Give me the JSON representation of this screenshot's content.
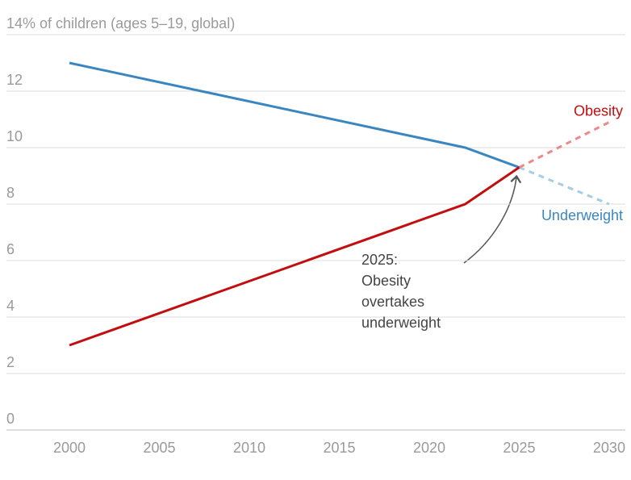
{
  "chart_data": {
    "type": "line",
    "x": [
      2000,
      2022,
      2025,
      2030
    ],
    "series": [
      {
        "name": "Underweight",
        "color": "#3a87c0",
        "projection_color": "#a6cce6",
        "values": [
          13,
          10,
          9.3,
          null
        ],
        "projection": [
          null,
          null,
          9.3,
          8
        ]
      },
      {
        "name": "Obesity",
        "color": "#c20e0e",
        "projection_color": "#ea8a8a",
        "values": [
          3,
          8,
          9.3,
          null
        ],
        "projection": [
          null,
          null,
          9.3,
          10.9
        ]
      }
    ],
    "xlim": [
      1996.5,
      2030.9
    ],
    "xticks": [
      2000,
      2005,
      2010,
      2015,
      2020,
      2025,
      2030
    ],
    "ylim": [
      0,
      14
    ],
    "yticks": [
      0,
      2,
      4,
      6,
      8,
      10,
      12,
      {
        "value": 14,
        "label": "14% of children (ages 5–19, global)"
      }
    ],
    "grid": true,
    "annotation": [
      "2025:",
      "Obesity",
      "overtakes",
      "underweight"
    ]
  }
}
